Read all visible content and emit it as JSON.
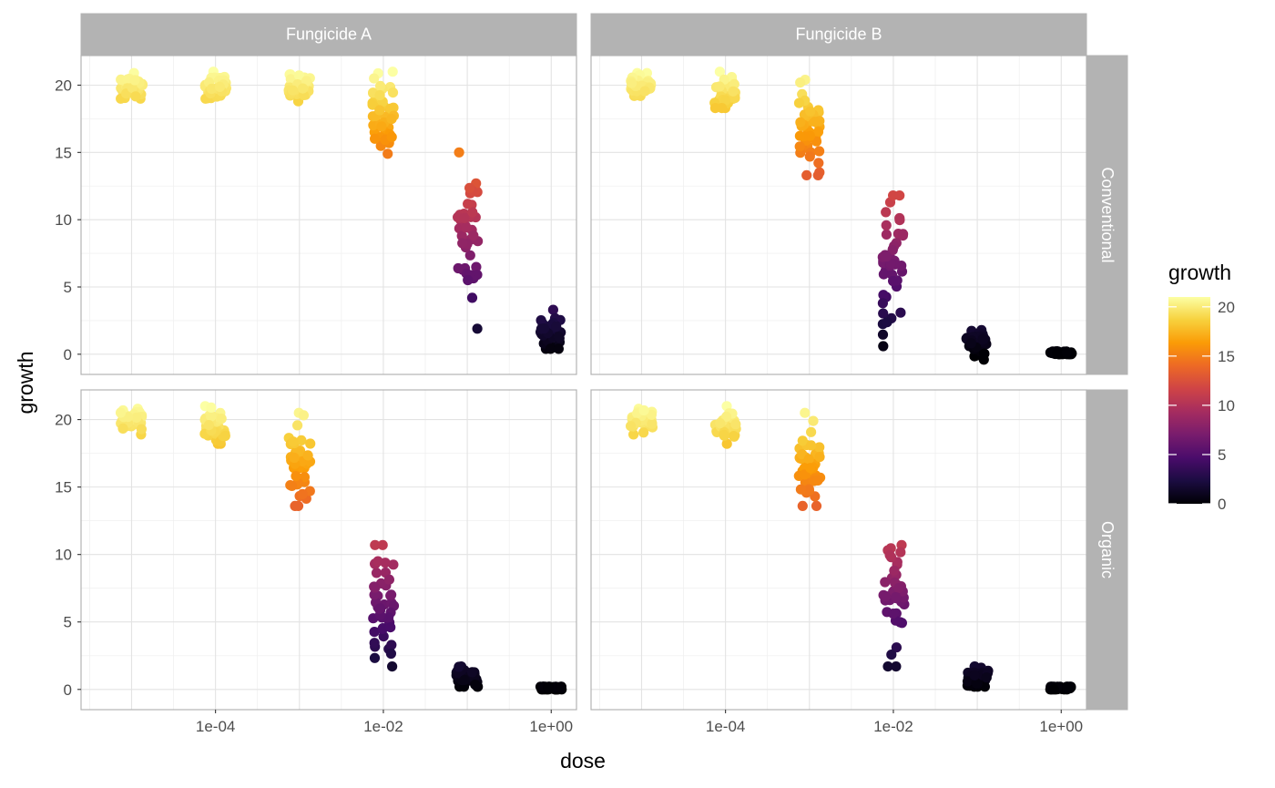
{
  "chart_data": {
    "type": "scatter",
    "x_scale": "log10",
    "xlabel": "dose",
    "ylabel": "growth",
    "xlim": [
      2.5e-06,
      2.0
    ],
    "ylim": [
      -1.5,
      22.2
    ],
    "x_ticks": [
      {
        "value": 0.0001,
        "label": "1e-04"
      },
      {
        "value": 0.01,
        "label": "1e-02"
      },
      {
        "value": 1,
        "label": "1e+00"
      }
    ],
    "y_ticks": [
      {
        "value": 0,
        "label": "0"
      },
      {
        "value": 5,
        "label": "5"
      },
      {
        "value": 10,
        "label": "10"
      },
      {
        "value": 15,
        "label": "15"
      },
      {
        "value": 20,
        "label": "20"
      }
    ],
    "grid": true,
    "facet_columns": [
      "Fungicide A",
      "Fungicide B"
    ],
    "facet_rows": [
      "Conventional",
      "Organic"
    ],
    "doses": [
      1e-05,
      0.0001,
      0.001,
      0.01,
      0.1,
      1
    ],
    "color_scale": {
      "title": "growth",
      "palette": "inferno",
      "domain": [
        0,
        21
      ],
      "breaks": [
        0,
        5,
        10,
        15,
        20
      ],
      "break_labels": [
        "0",
        "5",
        "10",
        "15",
        "20"
      ],
      "stops": [
        "#000004",
        "#1b0c41",
        "#4a0c6b",
        "#781c6d",
        "#a52c60",
        "#cf4446",
        "#ed6925",
        "#fb9b06",
        "#f7d13d",
        "#fcffa4"
      ],
      "position": "right"
    },
    "panels": [
      {
        "fungicide": "Fungicide A",
        "soil": "Conventional",
        "groups": [
          {
            "dose": 1e-05,
            "mean": 19.9,
            "min": 19.0,
            "max": 20.9
          },
          {
            "dose": 0.0001,
            "mean": 19.9,
            "min": 19.0,
            "max": 21.0
          },
          {
            "dose": 0.001,
            "mean": 19.8,
            "min": 18.8,
            "max": 20.8
          },
          {
            "dose": 0.01,
            "mean": 18.0,
            "min": 14.9,
            "max": 21.0
          },
          {
            "dose": 0.1,
            "mean": 9.0,
            "min": 1.9,
            "max": 15.0
          },
          {
            "dose": 1,
            "mean": 1.6,
            "min": 0.4,
            "max": 3.3
          }
        ]
      },
      {
        "fungicide": "Fungicide B",
        "soil": "Conventional",
        "groups": [
          {
            "dose": 1e-05,
            "mean": 19.9,
            "min": 19.2,
            "max": 20.9
          },
          {
            "dose": 0.0001,
            "mean": 19.4,
            "min": 18.3,
            "max": 21.0
          },
          {
            "dose": 0.001,
            "mean": 16.6,
            "min": 13.3,
            "max": 20.4
          },
          {
            "dose": 0.01,
            "mean": 6.6,
            "min": 0.6,
            "max": 11.8
          },
          {
            "dose": 0.1,
            "mean": 0.8,
            "min": -0.4,
            "max": 1.8
          },
          {
            "dose": 1,
            "mean": 0.1,
            "min": 0.0,
            "max": 0.2
          }
        ]
      },
      {
        "fungicide": "Fungicide A",
        "soil": "Organic",
        "groups": [
          {
            "dose": 1e-05,
            "mean": 19.9,
            "min": 18.9,
            "max": 20.8
          },
          {
            "dose": 0.0001,
            "mean": 19.4,
            "min": 18.2,
            "max": 21.0
          },
          {
            "dose": 0.001,
            "mean": 16.7,
            "min": 13.6,
            "max": 20.5
          },
          {
            "dose": 0.01,
            "mean": 6.7,
            "min": 1.7,
            "max": 10.7
          },
          {
            "dose": 0.1,
            "mean": 0.9,
            "min": 0.2,
            "max": 1.7
          },
          {
            "dose": 1,
            "mean": 0.1,
            "min": 0.0,
            "max": 0.2
          }
        ]
      },
      {
        "fungicide": "Fungicide B",
        "soil": "Organic",
        "groups": [
          {
            "dose": 1e-05,
            "mean": 19.9,
            "min": 18.9,
            "max": 20.8
          },
          {
            "dose": 0.0001,
            "mean": 19.4,
            "min": 18.2,
            "max": 21.0
          },
          {
            "dose": 0.001,
            "mean": 16.7,
            "min": 13.6,
            "max": 20.5
          },
          {
            "dose": 0.01,
            "mean": 6.8,
            "min": 1.7,
            "max": 10.7
          },
          {
            "dose": 0.1,
            "mean": 0.9,
            "min": 0.2,
            "max": 1.7
          },
          {
            "dose": 1,
            "mean": 0.1,
            "min": 0.0,
            "max": 0.2
          }
        ]
      }
    ]
  }
}
